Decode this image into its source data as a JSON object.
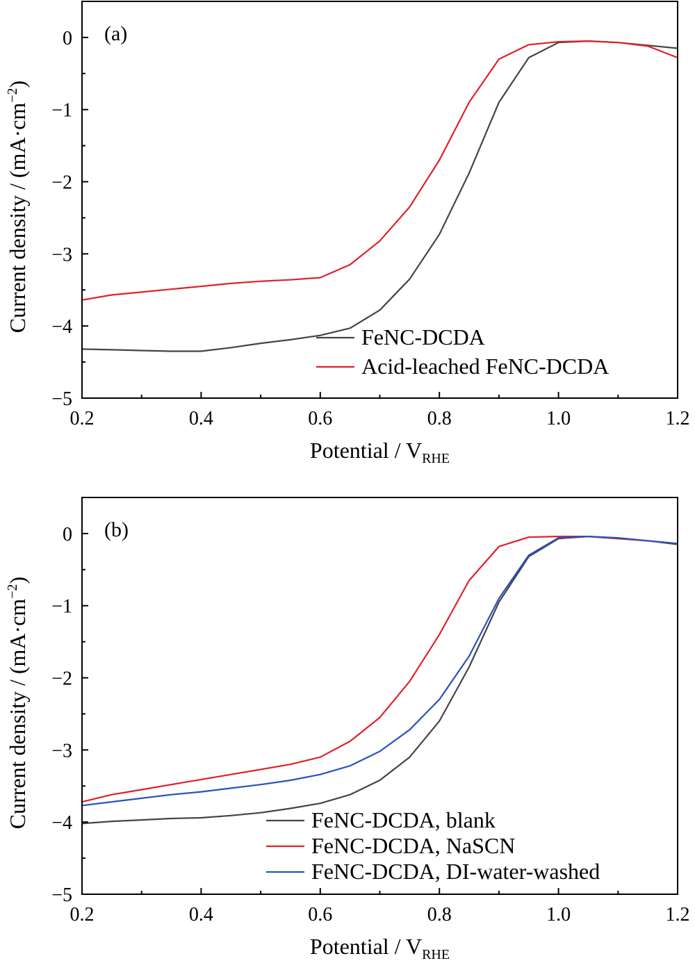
{
  "chart_data": [
    {
      "type": "line",
      "panel_label": "(a)",
      "xlabel": "Potential / V",
      "xlabel_sub": "RHE",
      "ylabel": "Current density  / (mA·cm",
      "ylabel_sup": "−2",
      "ylabel_end": ")",
      "xlim": [
        0.2,
        1.2
      ],
      "ylim": [
        -5,
        0.5
      ],
      "xticks": [
        "0.2",
        "0.4",
        "0.6",
        "0.8",
        "1.0",
        "1.2"
      ],
      "yticks": [
        "0",
        "−1",
        "−2",
        "−3",
        "−4",
        "−5"
      ],
      "xtick_values": [
        0.2,
        0.4,
        0.6,
        0.8,
        1.0,
        1.2
      ],
      "ytick_values": [
        0,
        -1,
        -2,
        -3,
        -4,
        -5
      ],
      "grid": false,
      "legend_position": "bottom-right",
      "series": [
        {
          "name": "FeNC-DCDA",
          "color": "#444444",
          "x": [
            0.2,
            0.25,
            0.3,
            0.35,
            0.4,
            0.45,
            0.5,
            0.55,
            0.6,
            0.65,
            0.7,
            0.75,
            0.8,
            0.85,
            0.9,
            0.95,
            1.0,
            1.05,
            1.1,
            1.15,
            1.2
          ],
          "y": [
            -4.32,
            -4.33,
            -4.34,
            -4.35,
            -4.35,
            -4.3,
            -4.24,
            -4.19,
            -4.13,
            -4.03,
            -3.78,
            -3.35,
            -2.73,
            -1.88,
            -0.9,
            -0.28,
            -0.07,
            -0.05,
            -0.07,
            -0.11,
            -0.15
          ]
        },
        {
          "name": "Acid-leached FeNC-DCDA",
          "color": "#e0202a",
          "x": [
            0.2,
            0.25,
            0.3,
            0.35,
            0.4,
            0.45,
            0.5,
            0.55,
            0.6,
            0.65,
            0.7,
            0.75,
            0.8,
            0.85,
            0.9,
            0.95,
            1.0,
            1.05,
            1.1,
            1.15,
            1.2
          ],
          "y": [
            -3.64,
            -3.57,
            -3.53,
            -3.49,
            -3.45,
            -3.41,
            -3.38,
            -3.36,
            -3.33,
            -3.15,
            -2.82,
            -2.35,
            -1.7,
            -0.9,
            -0.3,
            -0.1,
            -0.06,
            -0.05,
            -0.07,
            -0.12,
            -0.28
          ]
        }
      ]
    },
    {
      "type": "line",
      "panel_label": "(b)",
      "xlabel": "Potential / V",
      "xlabel_sub": "RHE",
      "ylabel": "Current density  / (mA·cm",
      "ylabel_sup": "−2",
      "ylabel_end": ")",
      "xlim": [
        0.2,
        1.2
      ],
      "ylim": [
        -5,
        0.5
      ],
      "xticks": [
        "0.2",
        "0.4",
        "0.6",
        "0.8",
        "1.0",
        "1.2"
      ],
      "yticks": [
        "0",
        "−1",
        "−2",
        "−3",
        "−4",
        "−5"
      ],
      "xtick_values": [
        0.2,
        0.4,
        0.6,
        0.8,
        1.0,
        1.2
      ],
      "ytick_values": [
        0,
        -1,
        -2,
        -3,
        -4,
        -5
      ],
      "grid": false,
      "legend_position": "bottom-right",
      "series": [
        {
          "name": "FeNC-DCDA, blank",
          "color": "#444444",
          "x": [
            0.2,
            0.25,
            0.3,
            0.35,
            0.4,
            0.45,
            0.5,
            0.55,
            0.6,
            0.65,
            0.7,
            0.75,
            0.8,
            0.85,
            0.9,
            0.95,
            1.0,
            1.05,
            1.1,
            1.15,
            1.2
          ],
          "y": [
            -4.02,
            -3.99,
            -3.97,
            -3.95,
            -3.94,
            -3.91,
            -3.87,
            -3.81,
            -3.74,
            -3.62,
            -3.42,
            -3.1,
            -2.6,
            -1.85,
            -0.95,
            -0.32,
            -0.07,
            -0.04,
            -0.07,
            -0.1,
            -0.15
          ]
        },
        {
          "name": "FeNC-DCDA, NaSCN",
          "color": "#e0202a",
          "x": [
            0.2,
            0.25,
            0.3,
            0.35,
            0.4,
            0.45,
            0.5,
            0.55,
            0.6,
            0.65,
            0.7,
            0.75,
            0.8,
            0.85,
            0.9,
            0.95,
            1.0,
            1.05,
            1.1,
            1.15,
            1.2
          ],
          "y": [
            -3.72,
            -3.62,
            -3.55,
            -3.48,
            -3.41,
            -3.34,
            -3.27,
            -3.2,
            -3.1,
            -2.88,
            -2.55,
            -2.05,
            -1.4,
            -0.65,
            -0.18,
            -0.05,
            -0.04,
            -0.04,
            -0.07,
            -0.1,
            -0.14
          ]
        },
        {
          "name": "FeNC-DCDA, DI-water-washed",
          "color": "#2a52be",
          "x": [
            0.2,
            0.25,
            0.3,
            0.35,
            0.4,
            0.45,
            0.5,
            0.55,
            0.6,
            0.65,
            0.7,
            0.75,
            0.8,
            0.85,
            0.9,
            0.95,
            1.0,
            1.05,
            1.1,
            1.15,
            1.2
          ],
          "y": [
            -3.77,
            -3.72,
            -3.67,
            -3.62,
            -3.58,
            -3.53,
            -3.48,
            -3.42,
            -3.34,
            -3.22,
            -3.02,
            -2.72,
            -2.3,
            -1.7,
            -0.9,
            -0.3,
            -0.06,
            -0.04,
            -0.06,
            -0.1,
            -0.14
          ]
        }
      ]
    }
  ]
}
